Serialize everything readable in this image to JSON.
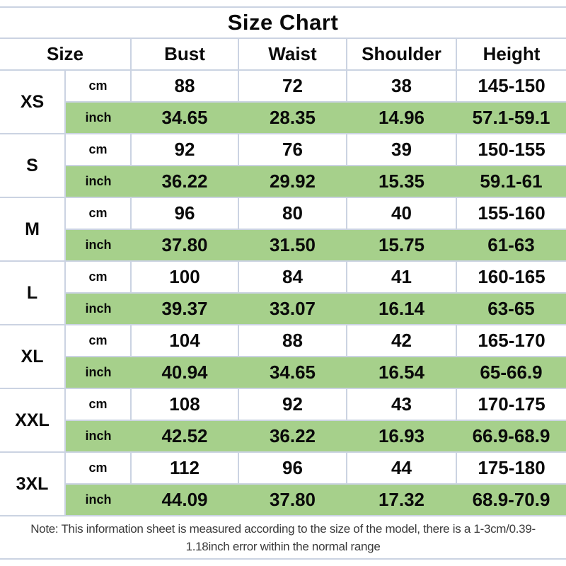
{
  "title": "Size Chart",
  "table": {
    "header": {
      "size_label": "Size",
      "columns": [
        "Bust",
        "Waist",
        "Shoulder",
        "Height"
      ]
    },
    "unit_labels": {
      "cm": "cm",
      "inch": "inch"
    },
    "rows": [
      {
        "size": "XS",
        "cm": [
          "88",
          "72",
          "38",
          "145-150"
        ],
        "inch": [
          "34.65",
          "28.35",
          "14.96",
          "57.1-59.1"
        ]
      },
      {
        "size": "S",
        "cm": [
          "92",
          "76",
          "39",
          "150-155"
        ],
        "inch": [
          "36.22",
          "29.92",
          "15.35",
          "59.1-61"
        ]
      },
      {
        "size": "M",
        "cm": [
          "96",
          "80",
          "40",
          "155-160"
        ],
        "inch": [
          "37.80",
          "31.50",
          "15.75",
          "61-63"
        ]
      },
      {
        "size": "L",
        "cm": [
          "100",
          "84",
          "41",
          "160-165"
        ],
        "inch": [
          "39.37",
          "33.07",
          "16.14",
          "63-65"
        ]
      },
      {
        "size": "XL",
        "cm": [
          "104",
          "88",
          "42",
          "165-170"
        ],
        "inch": [
          "40.94",
          "34.65",
          "16.54",
          "65-66.9"
        ]
      },
      {
        "size": "XXL",
        "cm": [
          "108",
          "92",
          "43",
          "170-175"
        ],
        "inch": [
          "42.52",
          "36.22",
          "16.93",
          "66.9-68.9"
        ]
      },
      {
        "size": "3XL",
        "cm": [
          "112",
          "96",
          "44",
          "175-180"
        ],
        "inch": [
          "44.09",
          "37.80",
          "17.32",
          "68.9-70.9"
        ]
      }
    ]
  },
  "note": {
    "full_text": "Note: This information sheet is measured according to the size of the model, there is a 1-3cm/0.39-1.18inch error within the normal range",
    "lines": [
      "Note: This information sheet is measured according to the size of the model, there is a 1-3cm/0.39-",
      "1.18inch error within the normal range"
    ]
  },
  "colors": {
    "accent_green": "#a6d08b",
    "grid_line": "#cbd3e2",
    "text": "#0a0a0a",
    "note_text": "#3b3b3b"
  }
}
